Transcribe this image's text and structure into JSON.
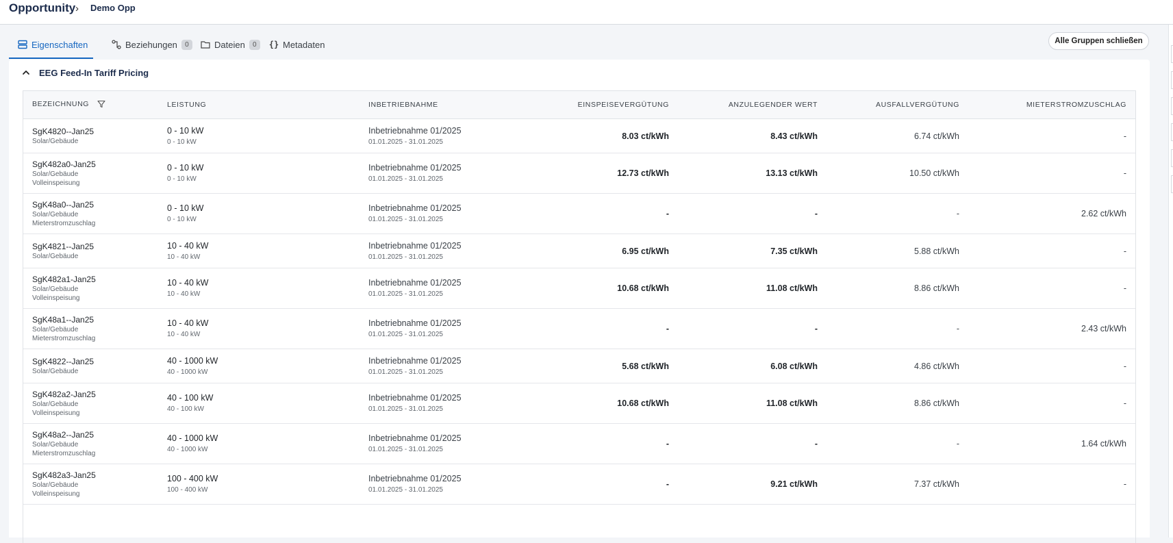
{
  "breadcrumb": {
    "root": "Opportunity",
    "separator": "›",
    "current": "Demo Opp"
  },
  "tabs": [
    {
      "label": "Eigenschaften",
      "icon": "list-icon",
      "active": true
    },
    {
      "label": "Beziehungen",
      "icon": "relations-icon",
      "count": "0"
    },
    {
      "label": "Dateien",
      "icon": "folder-icon",
      "count": "0"
    },
    {
      "label": "Metadaten",
      "icon": "braces-icon"
    }
  ],
  "actions": {
    "close_groups": "Alle Gruppen schließen"
  },
  "group": {
    "title": "EEG Feed-In Tariff Pricing"
  },
  "table": {
    "headers": [
      "BEZEICHNUNG",
      "LEISTUNG",
      "INBETRIEBNAHME",
      "EINSPEISEVERGÜTUNG",
      "ANZULEGENDER WERT",
      "AUSFALLVERGÜTUNG",
      "MIETERSTROMZUSCHLAG"
    ],
    "rows": [
      {
        "name": "SgK4820--Jan25",
        "sub": [
          "Solar/Gebäude"
        ],
        "power": "0 - 10 kW",
        "power_sub": "0 - 10 kW",
        "commission": "Inbetriebnahme 01/2025",
        "period": "01.01.2025 - 31.01.2025",
        "feed_in": "8.03 ct/kWh",
        "target": "8.43 ct/kWh",
        "outage": "6.74 ct/kWh",
        "tenant": "-"
      },
      {
        "name": "SgK482a0-Jan25",
        "sub": [
          "Solar/Gebäude",
          "Volleinspeisung"
        ],
        "power": "0 - 10 kW",
        "power_sub": "0 - 10 kW",
        "commission": "Inbetriebnahme 01/2025",
        "period": "01.01.2025 - 31.01.2025",
        "feed_in": "12.73 ct/kWh",
        "target": "13.13 ct/kWh",
        "outage": "10.50 ct/kWh",
        "tenant": "-"
      },
      {
        "name": "SgK48a0--Jan25",
        "sub": [
          "Solar/Gebäude",
          "Mieterstromzuschlag"
        ],
        "power": "0 - 10 kW",
        "power_sub": "0 - 10 kW",
        "commission": "Inbetriebnahme 01/2025",
        "period": "01.01.2025 - 31.01.2025",
        "feed_in": "-",
        "target": "-",
        "outage": "-",
        "tenant": "2.62 ct/kWh"
      },
      {
        "name": "SgK4821--Jan25",
        "sub": [
          "Solar/Gebäude"
        ],
        "power": "10 - 40 kW",
        "power_sub": "10 - 40 kW",
        "commission": "Inbetriebnahme 01/2025",
        "period": "01.01.2025 - 31.01.2025",
        "feed_in": "6.95 ct/kWh",
        "target": "7.35 ct/kWh",
        "outage": "5.88 ct/kWh",
        "tenant": "-"
      },
      {
        "name": "SgK482a1-Jan25",
        "sub": [
          "Solar/Gebäude",
          "Volleinspeisung"
        ],
        "power": "10 - 40 kW",
        "power_sub": "10 - 40 kW",
        "commission": "Inbetriebnahme 01/2025",
        "period": "01.01.2025 - 31.01.2025",
        "feed_in": "10.68 ct/kWh",
        "target": "11.08 ct/kWh",
        "outage": "8.86 ct/kWh",
        "tenant": "-"
      },
      {
        "name": "SgK48a1--Jan25",
        "sub": [
          "Solar/Gebäude",
          "Mieterstromzuschlag"
        ],
        "power": "10 - 40 kW",
        "power_sub": "10 - 40 kW",
        "commission": "Inbetriebnahme 01/2025",
        "period": "01.01.2025 - 31.01.2025",
        "feed_in": "-",
        "target": "-",
        "outage": "-",
        "tenant": "2.43 ct/kWh"
      },
      {
        "name": "SgK4822--Jan25",
        "sub": [
          "Solar/Gebäude"
        ],
        "power": "40 - 1000 kW",
        "power_sub": "40 - 1000 kW",
        "commission": "Inbetriebnahme 01/2025",
        "period": "01.01.2025 - 31.01.2025",
        "feed_in": "5.68 ct/kWh",
        "target": "6.08 ct/kWh",
        "outage": "4.86 ct/kWh",
        "tenant": "-"
      },
      {
        "name": "SgK482a2-Jan25",
        "sub": [
          "Solar/Gebäude",
          "Volleinspeisung"
        ],
        "power": "40 - 100 kW",
        "power_sub": "40 - 100 kW",
        "commission": "Inbetriebnahme 01/2025",
        "period": "01.01.2025 - 31.01.2025",
        "feed_in": "10.68 ct/kWh",
        "target": "11.08 ct/kWh",
        "outage": "8.86 ct/kWh",
        "tenant": "-"
      },
      {
        "name": "SgK48a2--Jan25",
        "sub": [
          "Solar/Gebäude",
          "Mieterstromzuschlag"
        ],
        "power": "40 - 1000 kW",
        "power_sub": "40 - 1000 kW",
        "commission": "Inbetriebnahme 01/2025",
        "period": "01.01.2025 - 31.01.2025",
        "feed_in": "-",
        "target": "-",
        "outage": "-",
        "tenant": "1.64 ct/kWh"
      },
      {
        "name": "SgK482a3-Jan25",
        "sub": [
          "Solar/Gebäude",
          "Volleinspeisung"
        ],
        "power": "100 - 400 kW",
        "power_sub": "100 - 400 kW",
        "commission": "Inbetriebnahme 01/2025",
        "period": "01.01.2025 - 31.01.2025",
        "feed_in": "-",
        "target": "9.21 ct/kWh",
        "outage": "7.37 ct/kWh",
        "tenant": "-"
      }
    ]
  },
  "colors": {
    "accent": "#1566c0",
    "title": "#1b2b4b",
    "background": "#f3f5f8"
  }
}
